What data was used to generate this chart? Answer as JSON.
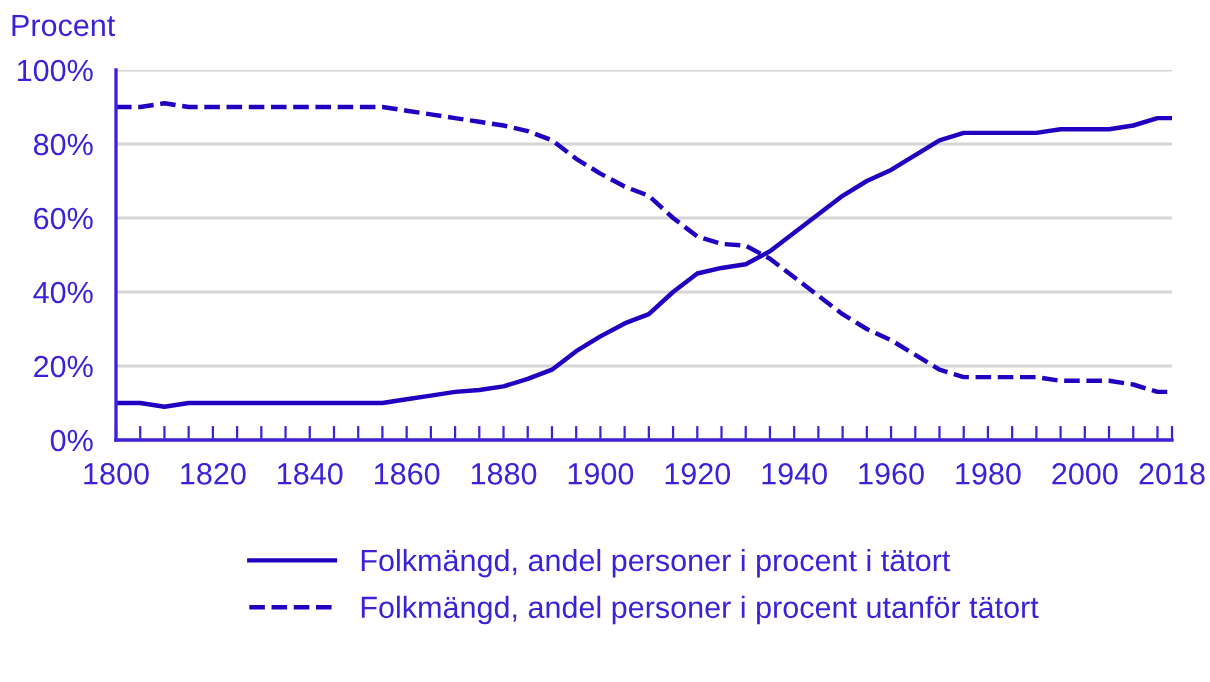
{
  "chart_data": {
    "type": "line",
    "ylabel": "Procent",
    "x": [
      1800,
      1805,
      1810,
      1815,
      1820,
      1825,
      1830,
      1835,
      1840,
      1845,
      1850,
      1855,
      1860,
      1865,
      1870,
      1875,
      1880,
      1885,
      1890,
      1895,
      1900,
      1905,
      1910,
      1915,
      1920,
      1925,
      1930,
      1935,
      1940,
      1945,
      1950,
      1955,
      1960,
      1965,
      1970,
      1975,
      1980,
      1985,
      1990,
      1995,
      2000,
      2005,
      2010,
      2015,
      2018
    ],
    "series": [
      {
        "name": "Folkmängd, andel personer i procent i tätort",
        "color": "#2200c0",
        "line_style": "solid",
        "values": [
          10,
          10,
          9,
          10,
          10,
          10,
          10,
          10,
          10,
          10,
          10,
          10,
          11,
          12,
          13,
          13.5,
          14.5,
          16.5,
          19,
          24,
          28,
          31.5,
          34,
          40,
          45,
          46.5,
          47.5,
          51,
          56,
          61,
          66,
          70,
          73,
          77,
          81,
          83,
          83,
          83,
          83,
          84,
          84,
          84,
          85,
          87,
          87
        ]
      },
      {
        "name": "Folkmängd, andel personer i procent utanför tätort",
        "color": "#2200c0",
        "line_style": "dashed",
        "values": [
          90,
          90,
          91,
          90,
          90,
          90,
          90,
          90,
          90,
          90,
          90,
          90,
          89,
          88,
          87,
          86,
          85,
          83.5,
          81,
          76,
          72,
          68.5,
          66,
          60,
          55,
          53,
          52.5,
          49,
          44,
          39,
          34,
          30,
          27,
          23,
          19,
          17,
          17,
          17,
          17,
          16,
          16,
          16,
          15,
          13,
          13
        ]
      }
    ],
    "xlim": [
      1800,
      2018
    ],
    "xticks": [
      1800,
      {
        "value": 1805,
        "label": null
      },
      {
        "value": 1810,
        "label": null
      },
      {
        "value": 1815,
        "label": null
      },
      1820,
      {
        "value": 1825,
        "label": null
      },
      {
        "value": 1830,
        "label": null
      },
      {
        "value": 1835,
        "label": null
      },
      1840,
      {
        "value": 1845,
        "label": null
      },
      {
        "value": 1850,
        "label": null
      },
      {
        "value": 1855,
        "label": null
      },
      1860,
      {
        "value": 1865,
        "label": null
      },
      {
        "value": 1870,
        "label": null
      },
      {
        "value": 1875,
        "label": null
      },
      1880,
      {
        "value": 1885,
        "label": null
      },
      {
        "value": 1890,
        "label": null
      },
      {
        "value": 1895,
        "label": null
      },
      1900,
      {
        "value": 1905,
        "label": null
      },
      {
        "value": 1910,
        "label": null
      },
      {
        "value": 1915,
        "label": null
      },
      1920,
      {
        "value": 1925,
        "label": null
      },
      {
        "value": 1930,
        "label": null
      },
      {
        "value": 1935,
        "label": null
      },
      1940,
      {
        "value": 1945,
        "label": null
      },
      {
        "value": 1950,
        "label": null
      },
      {
        "value": 1955,
        "label": null
      },
      1960,
      {
        "value": 1965,
        "label": null
      },
      {
        "value": 1970,
        "label": null
      },
      {
        "value": 1975,
        "label": null
      },
      1980,
      {
        "value": 1985,
        "label": null
      },
      {
        "value": 1990,
        "label": null
      },
      {
        "value": 1995,
        "label": null
      },
      2000,
      {
        "value": 2005,
        "label": null
      },
      {
        "value": 2010,
        "label": null
      },
      {
        "value": 2015,
        "label": null
      },
      2018
    ],
    "ylim": [
      0,
      100
    ],
    "yticks": [
      {
        "value": 0,
        "label": "0%"
      },
      {
        "value": 20,
        "label": "20%"
      },
      {
        "value": 40,
        "label": "40%"
      },
      {
        "value": 60,
        "label": "60%"
      },
      {
        "value": 80,
        "label": "80%"
      },
      {
        "value": 100,
        "label": "100%"
      }
    ],
    "grid": "y",
    "legend": "bottom",
    "marker": "none"
  }
}
